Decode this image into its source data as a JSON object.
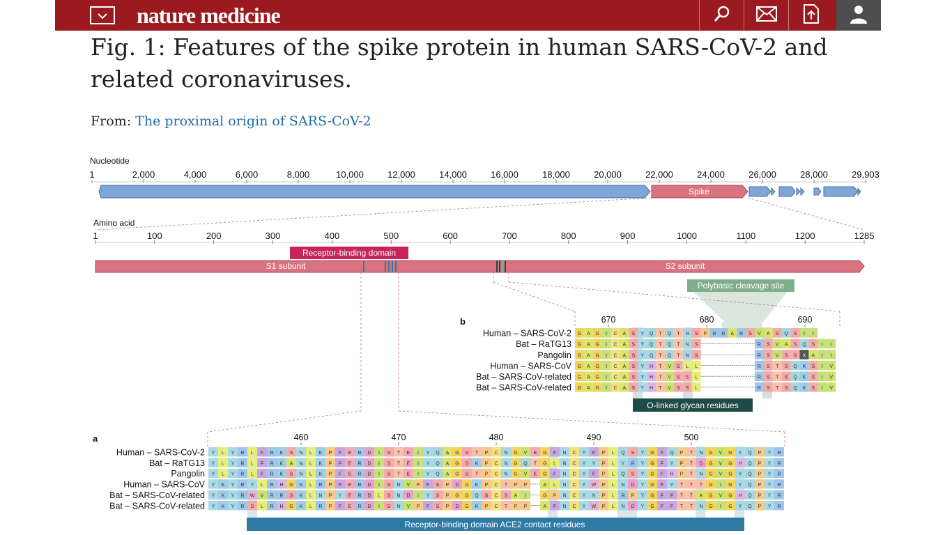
{
  "header": {
    "menu_icon": "chevron-down-icon",
    "logo_text": "nature medicine",
    "icons": [
      "search-icon",
      "mail-icon",
      "download-icon",
      "user-icon"
    ],
    "brand_color": "#9b1a1f"
  },
  "page": {
    "title": "Fig. 1: Features of the spike protein in human SARS-CoV-2 and related coronaviruses.",
    "from_label": "From:",
    "from_link": "The proximal origin of SARS-CoV-2"
  },
  "figure": {
    "nucleotide": {
      "label": "Nucleotide",
      "ticks": [
        "1",
        "2,000",
        "4,000",
        "6,000",
        "8,000",
        "10,000",
        "12,000",
        "14,000",
        "16,000",
        "18,000",
        "20,000",
        "22,000",
        "24,000",
        "26,000",
        "28,000",
        "29,903"
      ],
      "spike_label": "Spike"
    },
    "amino_acid": {
      "label": "Amino acid",
      "ticks": [
        "1",
        "100",
        "200",
        "300",
        "400",
        "500",
        "600",
        "700",
        "800",
        "900",
        "1000",
        "1100",
        "1200",
        "1285"
      ],
      "rbd_label": "Receptor-binding domain",
      "s1_label": "S1 subunit",
      "s2_label": "S2 subunit",
      "polybasic_label": "Polybasic cleavage site"
    },
    "panel_b": {
      "letter": "b",
      "ticks": [
        "670",
        "680",
        "690"
      ],
      "rows": [
        {
          "name": "Human – SARS-CoV-2",
          "seq": "GAGICASYQTQTNSPRRARSVASQSII"
        },
        {
          "name": "Bat – RaTG13",
          "seq": "GAGICASYQTQTNS------RSVASQSII"
        },
        {
          "name": "Pangolin",
          "seq": "GAGICASYQTQTNS------RSVSSXAII"
        },
        {
          "name": "Human – SARS-CoV",
          "seq": "GAGICASYHTVSLL------RSTSQKSIV"
        },
        {
          "name": "Bat – SARS-CoV-related",
          "seq": "GAGICASYHTVSSL------RSTSQKSIV"
        },
        {
          "name": "Bat – SARS-CoV-related",
          "seq": "GAGICASYHTVSSL------RSTSQKSIV"
        }
      ],
      "footer_label": "O-linked glycan residues"
    },
    "panel_a": {
      "letter": "a",
      "ticks": [
        "460",
        "470",
        "480",
        "490",
        "500"
      ],
      "rows": [
        {
          "name": "Human – SARS-CoV-2",
          "seq": "YLYRLFRKSNLKPFERDISTEIYQAGSTPCNGVEGFNCYFPLQSYGFQPTNGVGYQPYR"
        },
        {
          "name": "Bat – RaTG13",
          "seq": "YLYRLFRKANLKPFERDISTEIYQAGSKPCNGQTGLNCYYPLYRYGFYPTDGVGHQPYR"
        },
        {
          "name": "Pangolin",
          "seq": "YLYRLFRKSNLKPFERDISTEIYQAGSTPCNGVEGFNCYFPLQSYGFHPTNGVGYQPYR"
        },
        {
          "name": "Human – SARS-CoV",
          "seq": "YKYRYLRHGKLRPFERDISNVPFSPDGKPCTPP-ALNCYWPLNDYGFYTTTGIGYQPYR"
        },
        {
          "name": "Bat – SARS-CoV-related",
          "seq": "YKYRWVRRSKLNPYERDLSNDIYSPGGQSCSAI-GPNCYNPLRPYGFFTTAGVGHQPYR"
        },
        {
          "name": "Bat – SARS-CoV-related",
          "seq": "YKYRSLRHGKLRPFERDISNVPFSPDGKPCTPP-AFNCYWPLNDYGFFTTNGIGYQPYR"
        }
      ],
      "footer_label": "Receptor-binding domain ACE2 contact residues"
    },
    "colors": {
      "genome_blue": "#7fa6d6",
      "spike_pink": "#d9737f",
      "rbd_label_bg": "#c8245a",
      "polybasic_bg": "#7fae8c",
      "oglycan_bg": "#1f4a46",
      "ace2_bg": "#2d7aa3"
    }
  }
}
